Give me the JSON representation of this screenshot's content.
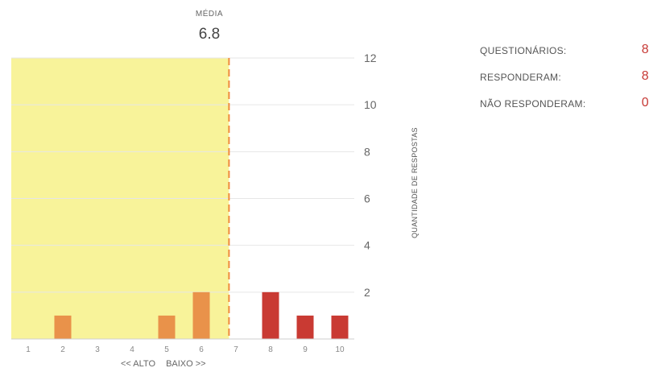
{
  "media": {
    "label": "MÉDIA",
    "value": "6.8"
  },
  "stats": [
    {
      "label": "QUESTIONÁRIOS:",
      "value": "8"
    },
    {
      "label": "RESPONDERAM:",
      "value": "8"
    },
    {
      "label": "NÃO RESPONDERAM:",
      "value": "0"
    }
  ],
  "axis_caption": {
    "left": "<< ALTO",
    "right": "BAIXO >>"
  },
  "colors": {
    "highlight": "#f8f39a",
    "bar_orange": "#e9924a",
    "bar_red": "#c93a33",
    "mean_line": "#f08a3c",
    "value": "#c73a36"
  },
  "chart_data": {
    "type": "bar",
    "categories": [
      "1",
      "2",
      "3",
      "4",
      "5",
      "6",
      "7",
      "8",
      "9",
      "10"
    ],
    "values": [
      0,
      1,
      0,
      0,
      1,
      2,
      0,
      2,
      1,
      1
    ],
    "ylabel": "QUANTIDADE DE RESPOSTAS",
    "ylim": [
      0,
      12
    ],
    "yticks": [
      2,
      4,
      6,
      8,
      10,
      12
    ],
    "mean": 6.8,
    "highlight_range": [
      1,
      6.8
    ],
    "bar_colors": [
      "#e9924a",
      "#e9924a",
      "#e9924a",
      "#e9924a",
      "#e9924a",
      "#e9924a",
      "#c93a33",
      "#c93a33",
      "#c93a33",
      "#c93a33"
    ],
    "grid": true,
    "legend": "none"
  }
}
